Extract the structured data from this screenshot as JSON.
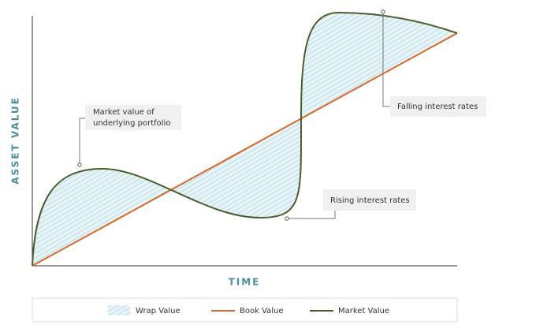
{
  "axis_labels": {
    "y": "ASSET VALUE",
    "x": "TIME"
  },
  "annotations": [
    "Market value of",
    "underlying portfolio",
    "Falling interest rates",
    "Rising interest rates"
  ],
  "legend": [
    "Wrap Value",
    "Book Value",
    "Market Value"
  ]
}
